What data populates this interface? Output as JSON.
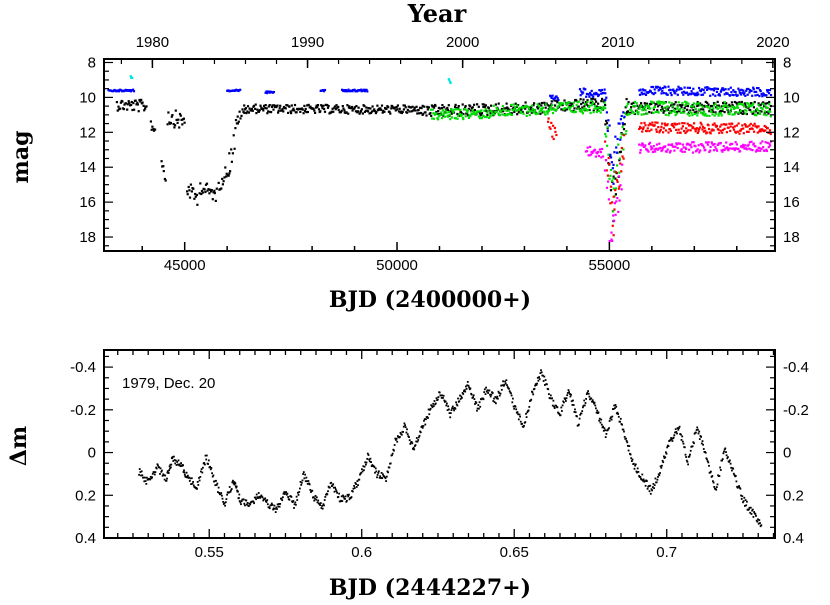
{
  "chart_data": [
    {
      "type": "scatter",
      "title": "",
      "xlabel": "BJD (2400000+)",
      "ylabel": "mag",
      "top_axis_label": "Year",
      "xlim": [
        43100,
        58900
      ],
      "ylim": [
        18.8,
        7.8
      ],
      "y_inverted": true,
      "x_ticks": [
        45000,
        50000,
        55000
      ],
      "x_tick_labels": [
        "45000",
        "50000",
        "55000"
      ],
      "top_ticks_year": [
        1980,
        1990,
        2000,
        2010,
        2020
      ],
      "top_ticks_jd": [
        44240,
        47893,
        51545,
        55198,
        58850
      ],
      "top_tick_labels": [
        "1980",
        "1990",
        "2000",
        "2010",
        "2020"
      ],
      "y_ticks": [
        8,
        10,
        12,
        14,
        16,
        18
      ],
      "y_tick_labels": [
        "8",
        "10",
        "12",
        "14",
        "16",
        "18"
      ],
      "grid": false,
      "series": [
        {
          "color": "#000000",
          "segments": [
            {
              "x": [
                43400,
                44100
              ],
              "y": [
                10.4,
                10.5
              ],
              "scatter": 0.35
            },
            {
              "x": [
                44200,
                44300
              ],
              "y": [
                11.5,
                11.9
              ],
              "scatter": 0.3
            },
            {
              "x": [
                44450,
                44550
              ],
              "y": [
                13.5,
                14.6
              ],
              "scatter": 0.4
            },
            {
              "x": [
                44600,
                45000
              ],
              "y": [
                11.1,
                11.4
              ],
              "scatter": 0.5
            },
            {
              "x": [
                45050,
                45300
              ],
              "y": [
                15.2,
                15.8
              ],
              "scatter": 0.45
            },
            {
              "x": [
                45350,
                45750
              ],
              "y": [
                15.1,
                15.6
              ],
              "scatter": 0.4
            },
            {
              "x": [
                45800,
                46050
              ],
              "y": [
                15.0,
                14.0
              ],
              "scatter": 0.45
            },
            {
              "x": [
                46050,
                46250
              ],
              "y": [
                13.8,
                11.5
              ],
              "scatter": 0.8
            },
            {
              "x": [
                46250,
                46400
              ],
              "y": [
                11.2,
                10.8
              ],
              "scatter": 0.3
            },
            {
              "x": [
                46400,
                50600
              ],
              "y": [
                10.65,
                10.7
              ],
              "scatter": 0.25
            },
            {
              "x": [
                50600,
                53500
              ],
              "y": [
                10.8,
                10.6
              ],
              "scatter": 0.35
            },
            {
              "x": [
                53500,
                54900
              ],
              "y": [
                10.5,
                10.4
              ],
              "scatter": 0.35
            },
            {
              "x": [
                54900,
                55100
              ],
              "y": [
                11.0,
                16.5
              ],
              "scatter": 1.0
            },
            {
              "x": [
                55100,
                55400
              ],
              "y": [
                15.5,
                11.0
              ],
              "scatter": 1.0
            },
            {
              "x": [
                55400,
                58800
              ],
              "y": [
                10.6,
                10.6
              ],
              "scatter": 0.35
            }
          ]
        },
        {
          "color": "#00dd00",
          "segments": [
            {
              "x": [
                50800,
                52200
              ],
              "y": [
                11.0,
                10.9
              ],
              "scatter": 0.3
            },
            {
              "x": [
                52200,
                54900
              ],
              "y": [
                10.8,
                10.5
              ],
              "scatter": 0.35
            },
            {
              "x": [
                54900,
                55100
              ],
              "y": [
                11.2,
                16.2
              ],
              "scatter": 1.0
            },
            {
              "x": [
                55100,
                55400
              ],
              "y": [
                15.0,
                11.2
              ],
              "scatter": 1.0
            },
            {
              "x": [
                55400,
                58800
              ],
              "y": [
                10.6,
                10.7
              ],
              "scatter": 0.4
            }
          ]
        },
        {
          "color": "#0000ff",
          "segments": [
            {
              "x": [
                43200,
                43800
              ],
              "y": [
                9.6,
                9.6
              ],
              "scatter": 0.05
            },
            {
              "x": [
                46000,
                46300
              ],
              "y": [
                9.6,
                9.6
              ],
              "scatter": 0.05
            },
            {
              "x": [
                46900,
                47100
              ],
              "y": [
                9.7,
                9.7
              ],
              "scatter": 0.05
            },
            {
              "x": [
                48200,
                48300
              ],
              "y": [
                9.6,
                9.6
              ],
              "scatter": 0.05
            },
            {
              "x": [
                48700,
                49300
              ],
              "y": [
                9.6,
                9.6
              ],
              "scatter": 0.05
            },
            {
              "x": [
                53600,
                53800
              ],
              "y": [
                9.8,
                10.0
              ],
              "scatter": 0.2
            },
            {
              "x": [
                54300,
                54900
              ],
              "y": [
                9.7,
                9.8
              ],
              "scatter": 0.25
            },
            {
              "x": [
                54900,
                55100
              ],
              "y": [
                10.5,
                14.5
              ],
              "scatter": 0.9
            },
            {
              "x": [
                55100,
                55350
              ],
              "y": [
                13.5,
                10.5
              ],
              "scatter": 0.8
            },
            {
              "x": [
                55700,
                58800
              ],
              "y": [
                9.6,
                9.7
              ],
              "scatter": 0.25
            }
          ]
        },
        {
          "color": "#ff0000",
          "segments": [
            {
              "x": [
                53550,
                53750
              ],
              "y": [
                11.5,
                12.2
              ],
              "scatter": 0.5
            },
            {
              "x": [
                54900,
                55100
              ],
              "y": [
                12.5,
                17.0
              ],
              "scatter": 1.0
            },
            {
              "x": [
                55100,
                55350
              ],
              "y": [
                16.0,
                12.5
              ],
              "scatter": 1.0
            },
            {
              "x": [
                55700,
                58800
              ],
              "y": [
                11.7,
                11.8
              ],
              "scatter": 0.3
            }
          ]
        },
        {
          "color": "#ff00ff",
          "segments": [
            {
              "x": [
                54450,
                54850
              ],
              "y": [
                13.0,
                13.2
              ],
              "scatter": 0.3
            },
            {
              "x": [
                54900,
                55050
              ],
              "y": [
                14.0,
                18.5
              ],
              "scatter": 1.2
            },
            {
              "x": [
                55050,
                55300
              ],
              "y": [
                17.5,
                14.5
              ],
              "scatter": 1.0
            },
            {
              "x": [
                55700,
                58800
              ],
              "y": [
                12.9,
                12.8
              ],
              "scatter": 0.3
            }
          ]
        },
        {
          "color": "#00e5e5",
          "segments": [
            {
              "x": [
                43730,
                43760
              ],
              "y": [
                8.8,
                8.9
              ],
              "scatter": 0.05
            },
            {
              "x": [
                51220,
                51260
              ],
              "y": [
                9.0,
                9.2
              ],
              "scatter": 0.05
            }
          ]
        }
      ]
    },
    {
      "type": "scatter",
      "title": "",
      "xlabel": "BJD (2444227+)",
      "ylabel": "Δm",
      "annotation": "1979, Dec. 20",
      "xlim": [
        0.5155,
        0.7355
      ],
      "ylim": [
        0.4,
        -0.48
      ],
      "y_inverted": true,
      "x_ticks": [
        0.55,
        0.6,
        0.65,
        0.7
      ],
      "x_tick_labels": [
        "0.55",
        "0.6",
        "0.65",
        "0.7"
      ],
      "y_ticks": [
        -0.4,
        -0.2,
        0,
        0.2,
        0.4
      ],
      "y_tick_labels": [
        "-0.4",
        "-0.2",
        "0",
        "0.2",
        "0.4"
      ],
      "grid": false,
      "series": [
        {
          "color": "#000000",
          "x": [
            0.527,
            0.53,
            0.533,
            0.536,
            0.538,
            0.541,
            0.543,
            0.546,
            0.549,
            0.552,
            0.555,
            0.558,
            0.56,
            0.563,
            0.566,
            0.569,
            0.572,
            0.575,
            0.578,
            0.581,
            0.584,
            0.587,
            0.59,
            0.593,
            0.596,
            0.599,
            0.602,
            0.605,
            0.608,
            0.611,
            0.614,
            0.617,
            0.62,
            0.623,
            0.626,
            0.629,
            0.632,
            0.635,
            0.638,
            0.641,
            0.644,
            0.647,
            0.65,
            0.653,
            0.656,
            0.659,
            0.662,
            0.665,
            0.668,
            0.671,
            0.674,
            0.677,
            0.68,
            0.683,
            0.686,
            0.689,
            0.692,
            0.695,
            0.698,
            0.701,
            0.704,
            0.707,
            0.71,
            0.713,
            0.716,
            0.719,
            0.722,
            0.725,
            0.728,
            0.731
          ],
          "y": [
            0.09,
            0.14,
            0.07,
            0.12,
            0.03,
            0.06,
            0.12,
            0.16,
            0.02,
            0.14,
            0.24,
            0.13,
            0.22,
            0.25,
            0.2,
            0.24,
            0.27,
            0.18,
            0.25,
            0.1,
            0.2,
            0.26,
            0.14,
            0.22,
            0.21,
            0.13,
            0.02,
            0.1,
            0.12,
            -0.05,
            -0.12,
            -0.02,
            -0.12,
            -0.22,
            -0.28,
            -0.18,
            -0.25,
            -0.32,
            -0.2,
            -0.3,
            -0.24,
            -0.34,
            -0.22,
            -0.12,
            -0.28,
            -0.38,
            -0.25,
            -0.18,
            -0.3,
            -0.13,
            -0.28,
            -0.2,
            -0.08,
            -0.22,
            -0.1,
            0.05,
            0.12,
            0.18,
            0.08,
            -0.05,
            -0.12,
            0.05,
            -0.12,
            0.02,
            0.18,
            -0.02,
            0.1,
            0.22,
            0.28,
            0.34
          ]
        }
      ]
    }
  ]
}
